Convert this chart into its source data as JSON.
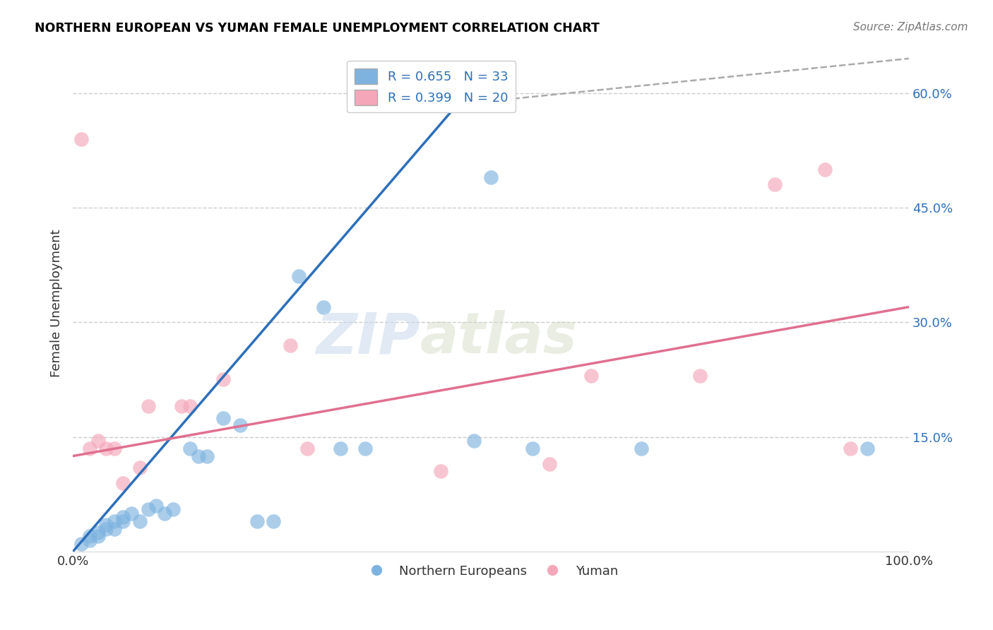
{
  "title": "NORTHERN EUROPEAN VS YUMAN FEMALE UNEMPLOYMENT CORRELATION CHART",
  "source": "Source: ZipAtlas.com",
  "ylabel": "Female Unemployment",
  "y_ticklabels": [
    "15.0%",
    "30.0%",
    "45.0%",
    "60.0%"
  ],
  "y_ticks": [
    0.15,
    0.3,
    0.45,
    0.6
  ],
  "xlim": [
    0.0,
    1.0
  ],
  "ylim": [
    0.0,
    0.65
  ],
  "legend_labels": [
    "Northern Europeans",
    "Yuman"
  ],
  "R_blue": 0.655,
  "N_blue": 33,
  "R_pink": 0.399,
  "N_pink": 20,
  "blue_color": "#7eb3e0",
  "pink_color": "#f4a7b9",
  "blue_line_color": "#2d6fba",
  "pink_line_color": "#e0708f",
  "blue_scatter": [
    [
      0.01,
      0.01
    ],
    [
      0.02,
      0.02
    ],
    [
      0.02,
      0.015
    ],
    [
      0.03,
      0.025
    ],
    [
      0.03,
      0.02
    ],
    [
      0.04,
      0.03
    ],
    [
      0.04,
      0.035
    ],
    [
      0.05,
      0.04
    ],
    [
      0.05,
      0.03
    ],
    [
      0.06,
      0.04
    ],
    [
      0.06,
      0.045
    ],
    [
      0.07,
      0.05
    ],
    [
      0.08,
      0.04
    ],
    [
      0.09,
      0.055
    ],
    [
      0.1,
      0.06
    ],
    [
      0.11,
      0.05
    ],
    [
      0.12,
      0.055
    ],
    [
      0.14,
      0.135
    ],
    [
      0.15,
      0.125
    ],
    [
      0.16,
      0.125
    ],
    [
      0.18,
      0.175
    ],
    [
      0.2,
      0.165
    ],
    [
      0.22,
      0.04
    ],
    [
      0.24,
      0.04
    ],
    [
      0.27,
      0.36
    ],
    [
      0.3,
      0.32
    ],
    [
      0.32,
      0.135
    ],
    [
      0.35,
      0.135
    ],
    [
      0.48,
      0.145
    ],
    [
      0.5,
      0.49
    ],
    [
      0.55,
      0.135
    ],
    [
      0.68,
      0.135
    ],
    [
      0.95,
      0.135
    ]
  ],
  "pink_scatter": [
    [
      0.01,
      0.54
    ],
    [
      0.02,
      0.135
    ],
    [
      0.03,
      0.145
    ],
    [
      0.04,
      0.135
    ],
    [
      0.05,
      0.135
    ],
    [
      0.06,
      0.09
    ],
    [
      0.08,
      0.11
    ],
    [
      0.09,
      0.19
    ],
    [
      0.13,
      0.19
    ],
    [
      0.14,
      0.19
    ],
    [
      0.18,
      0.225
    ],
    [
      0.26,
      0.27
    ],
    [
      0.28,
      0.135
    ],
    [
      0.44,
      0.105
    ],
    [
      0.57,
      0.115
    ],
    [
      0.62,
      0.23
    ],
    [
      0.75,
      0.23
    ],
    [
      0.84,
      0.48
    ],
    [
      0.9,
      0.5
    ],
    [
      0.93,
      0.135
    ]
  ],
  "blue_line_x": [
    0.0,
    0.46
  ],
  "blue_line_y": [
    0.0,
    0.585
  ],
  "dashed_line_x": [
    0.46,
    1.0
  ],
  "dashed_line_y": [
    0.585,
    0.645
  ],
  "pink_line_x": [
    0.0,
    1.0
  ],
  "pink_line_y": [
    0.125,
    0.32
  ],
  "watermark_zip": "ZIP",
  "watermark_atlas": "atlas",
  "background_color": "#ffffff",
  "grid_color": "#cccccc",
  "title_color": "#000000",
  "source_color": "#777777",
  "text_color": "#333333"
}
